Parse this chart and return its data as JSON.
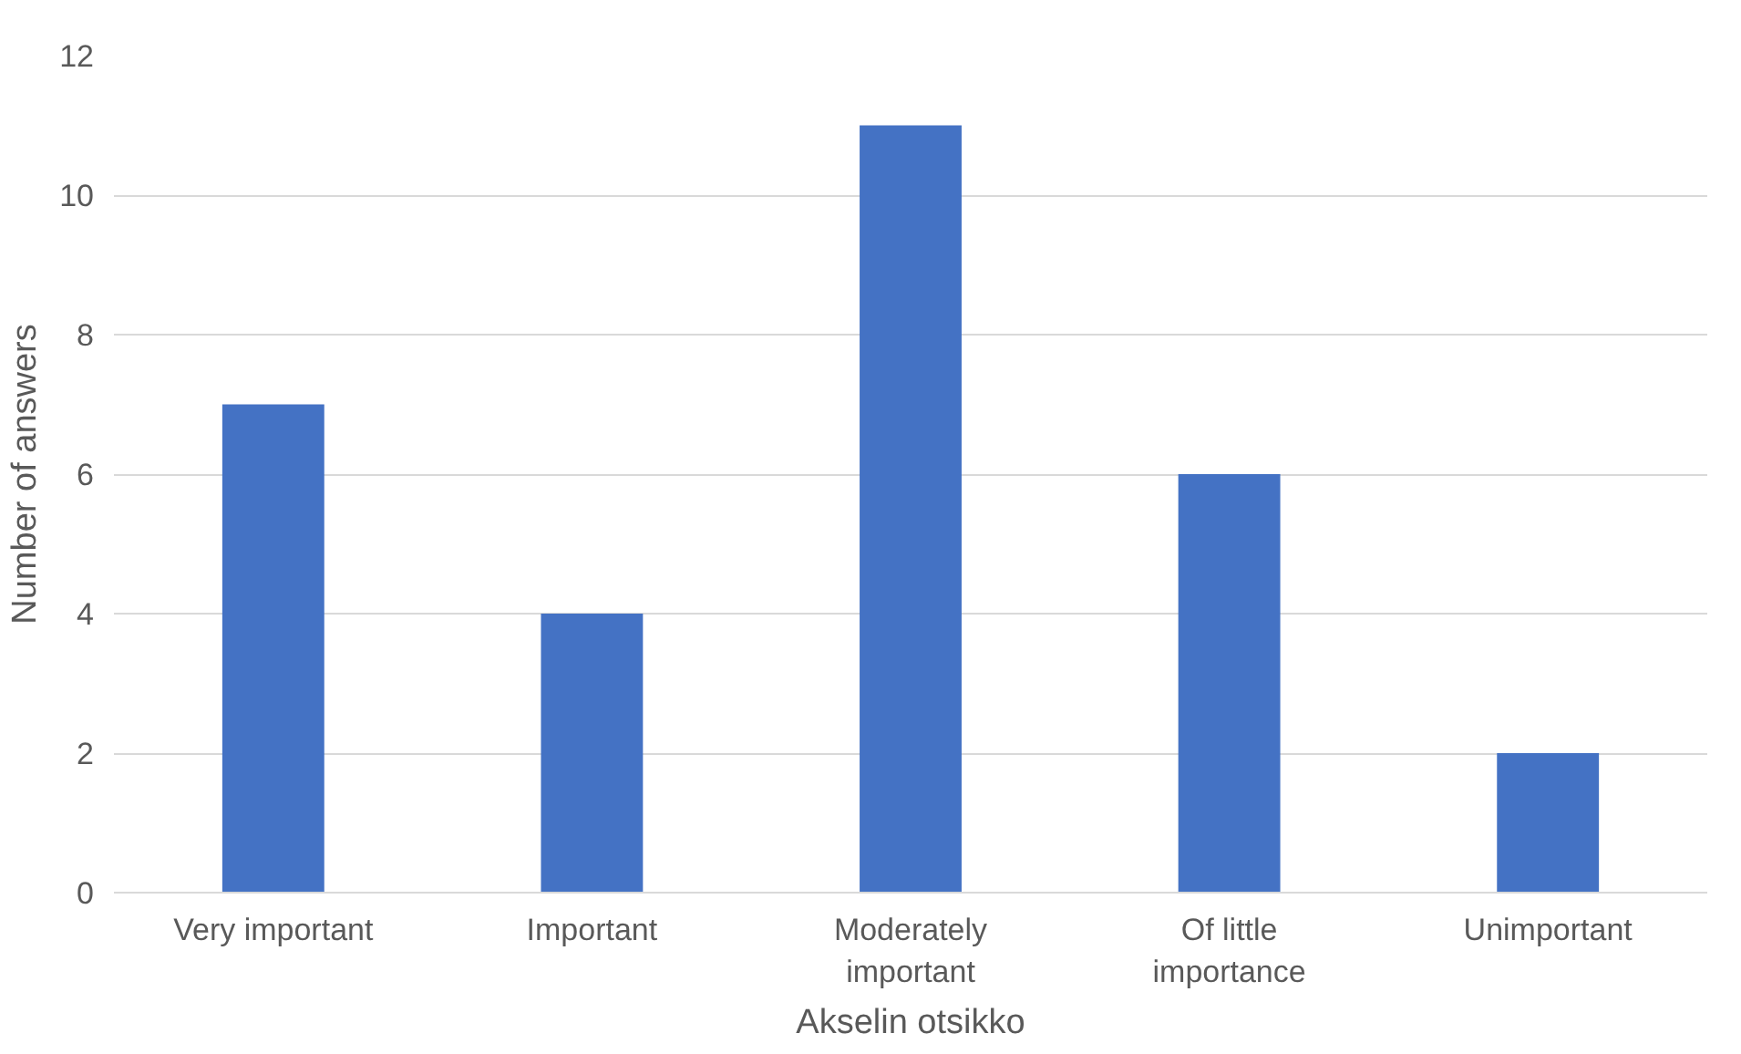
{
  "chart_data": {
    "type": "bar",
    "xlabel": "Akselin otsikko",
    "ylabel": "Number of answers",
    "categories": [
      "Very important",
      "Important",
      "Moderately important",
      "Of little importance",
      "Unimportant"
    ],
    "values": [
      7,
      4,
      11,
      6,
      2
    ],
    "color": "#4472c4",
    "ylim": [
      0,
      12
    ],
    "yticks": [
      0,
      2,
      4,
      6,
      8,
      10,
      12
    ],
    "grid": "y"
  }
}
